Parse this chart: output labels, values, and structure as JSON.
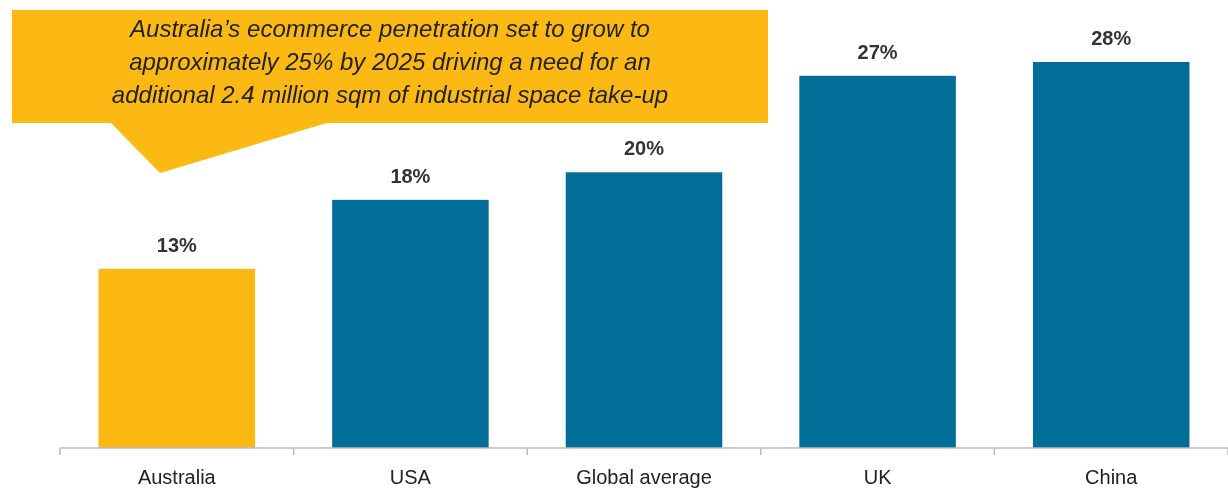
{
  "chart_data": {
    "type": "bar",
    "categories": [
      "Australia",
      "USA",
      "Global average",
      "UK",
      "China"
    ],
    "values": [
      13,
      18,
      20,
      27,
      28
    ],
    "colors": [
      "#fdb913",
      "#006e96",
      "#006e96",
      "#006e96",
      "#006e96"
    ],
    "value_labels": [
      "13%",
      "18%",
      "20%",
      "27%",
      "28%"
    ],
    "annotations": [
      "Australia’s ecommerce penetration set to grow to approximately 25% by 2025 driving a need for an additional 2.4 million sqm of industrial space take-up"
    ]
  }
}
